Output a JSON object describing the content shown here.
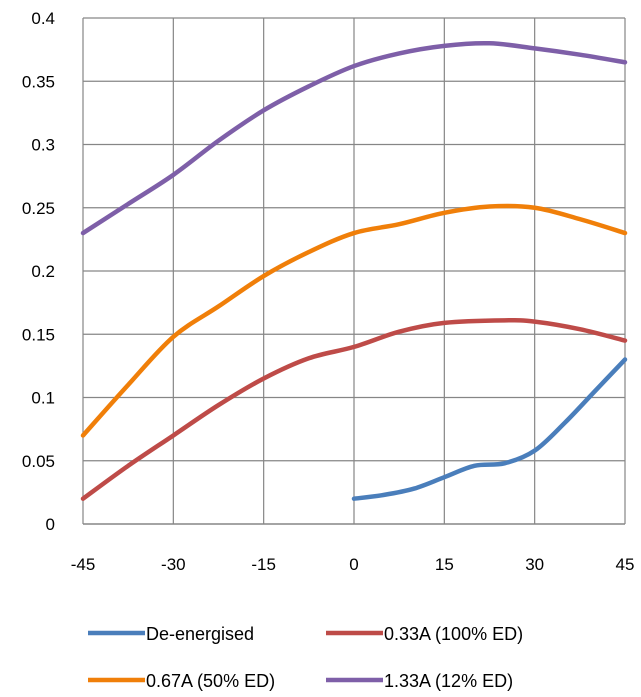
{
  "chart_data": {
    "type": "line",
    "title": "",
    "xlabel": "",
    "ylabel": "",
    "xlim": [
      -45,
      45
    ],
    "ylim": [
      0,
      0.4
    ],
    "x_ticks": [
      "-45",
      "-30",
      "-15",
      "0",
      "15",
      "30",
      "45"
    ],
    "y_ticks": [
      "0",
      "0.05",
      "0.1",
      "0.15",
      "0.2",
      "0.25",
      "0.3",
      "0.35",
      "0.4"
    ],
    "grid": true,
    "legend_position": "bottom",
    "series": [
      {
        "name": "De-energised",
        "color": "#4a7ebb",
        "points": [
          [
            0,
            0.02
          ],
          [
            5,
            0.023
          ],
          [
            10,
            0.028
          ],
          [
            15,
            0.037
          ],
          [
            20,
            0.046
          ],
          [
            25,
            0.048
          ],
          [
            30,
            0.058
          ],
          [
            35,
            0.08
          ],
          [
            40,
            0.105
          ],
          [
            45,
            0.13
          ]
        ]
      },
      {
        "name": "0.33A (100% ED)",
        "color": "#be4b48",
        "points": [
          [
            -45,
            0.02
          ],
          [
            -37.5,
            0.046
          ],
          [
            -30,
            0.07
          ],
          [
            -22.5,
            0.094
          ],
          [
            -15,
            0.115
          ],
          [
            -7.5,
            0.131
          ],
          [
            0,
            0.14
          ],
          [
            7.5,
            0.152
          ],
          [
            15,
            0.159
          ],
          [
            25,
            0.161
          ],
          [
            30,
            0.16
          ],
          [
            37.5,
            0.154
          ],
          [
            45,
            0.145
          ]
        ]
      },
      {
        "name": "0.67A (50% ED)",
        "color": "#f07f09",
        "points": [
          [
            -45,
            0.07
          ],
          [
            -37.5,
            0.11
          ],
          [
            -30,
            0.148
          ],
          [
            -22.5,
            0.172
          ],
          [
            -15,
            0.196
          ],
          [
            -7.5,
            0.215
          ],
          [
            0,
            0.23
          ],
          [
            7.5,
            0.237
          ],
          [
            15,
            0.246
          ],
          [
            22.5,
            0.251
          ],
          [
            30,
            0.25
          ],
          [
            37.5,
            0.241
          ],
          [
            45,
            0.23
          ]
        ]
      },
      {
        "name": "1.33A (12% ED)",
        "color": "#7e5fa8",
        "points": [
          [
            -45,
            0.23
          ],
          [
            -37.5,
            0.253
          ],
          [
            -30,
            0.276
          ],
          [
            -22.5,
            0.303
          ],
          [
            -15,
            0.327
          ],
          [
            -7.5,
            0.346
          ],
          [
            0,
            0.362
          ],
          [
            7.5,
            0.372
          ],
          [
            15,
            0.378
          ],
          [
            22.5,
            0.38
          ],
          [
            30,
            0.376
          ],
          [
            37.5,
            0.371
          ],
          [
            45,
            0.365
          ]
        ]
      }
    ]
  }
}
